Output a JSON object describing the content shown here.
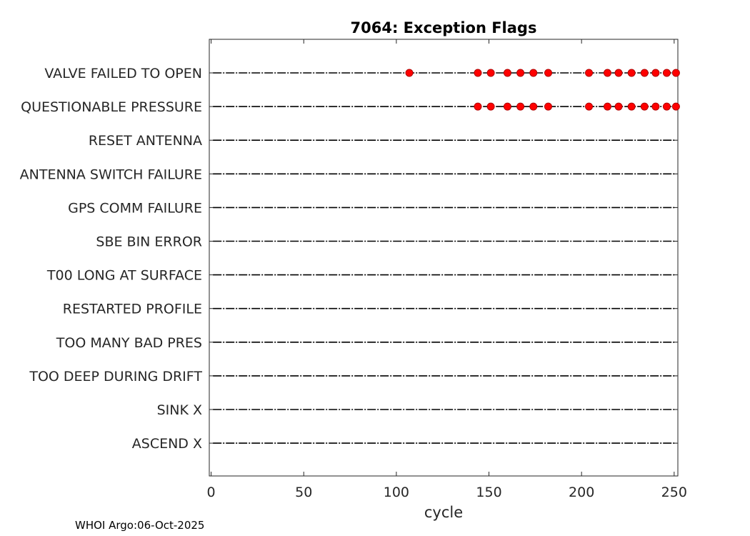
{
  "chart_data": {
    "type": "scatter",
    "title": "7064: Exception Flags",
    "xlabel": "cycle",
    "ylabel": "",
    "xlim": [
      -1,
      252
    ],
    "xticks": [
      0,
      50,
      100,
      150,
      200,
      250
    ],
    "categories": [
      "VALVE FAILED TO OPEN",
      "QUESTIONABLE PRESSURE",
      "RESET ANTENNA",
      "ANTENNA SWITCH FAILURE",
      "GPS COMM FAILURE",
      "SBE BIN ERROR",
      "T00 LONG AT SURFACE",
      "RESTARTED PROFILE",
      "TOO MANY BAD PRES",
      "TOO DEEP DURING DRIFT",
      "SINK X",
      "ASCEND X"
    ],
    "cycle_range": [
      1,
      251
    ],
    "series": [
      {
        "category": "VALVE FAILED TO OPEN",
        "flagged_cycles": [
          107,
          144,
          151,
          160,
          167,
          174,
          182,
          204,
          214,
          220,
          227,
          234,
          240,
          246,
          251
        ]
      },
      {
        "category": "QUESTIONABLE PRESSURE",
        "flagged_cycles": [
          144,
          151,
          160,
          167,
          174,
          182,
          204,
          214,
          220,
          227,
          234,
          240,
          246,
          251
        ]
      }
    ],
    "marker_color": "#ff0000",
    "baseline_color": "#000000",
    "grid": false,
    "legend": "none"
  },
  "footer": {
    "note": "WHOI Argo:06-Oct-2025"
  }
}
